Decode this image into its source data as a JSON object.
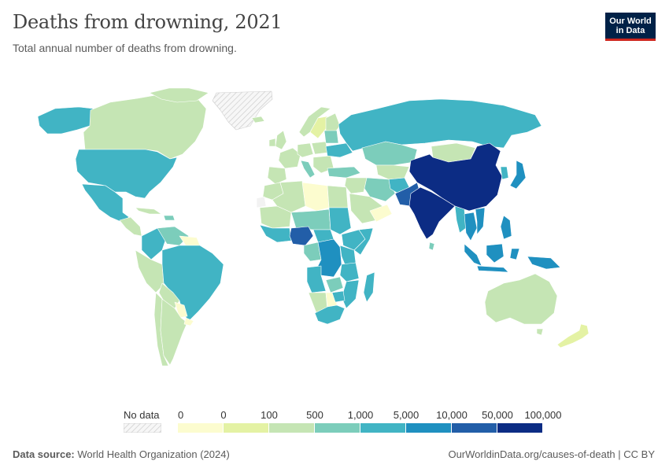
{
  "header": {
    "title": "Deaths from drowning, 2021",
    "subtitle": "Total annual number of deaths from drowning."
  },
  "logo": {
    "line1": "Our World",
    "line2": "in Data"
  },
  "legend": {
    "no_data_label": "No data",
    "bins": [
      {
        "label": "0",
        "color": "#fcfccf"
      },
      {
        "label": "0",
        "color": "#e4f2a4"
      },
      {
        "label": "100",
        "color": "#c5e5b4"
      },
      {
        "label": "500",
        "color": "#7ccdbb"
      },
      {
        "label": "1,000",
        "color": "#41b4c4"
      },
      {
        "label": "5,000",
        "color": "#1f90c0"
      },
      {
        "label": "10,000",
        "color": "#225ea8"
      },
      {
        "label": "50,000",
        "color": "#0c2c84"
      }
    ],
    "max_label": "100,000",
    "no_data_color": "#f2f2f2"
  },
  "map_regions": [
    {
      "name": "Canada",
      "color": "#c5e5b4"
    },
    {
      "name": "United States",
      "color": "#41b4c4"
    },
    {
      "name": "Mexico",
      "color": "#41b4c4"
    },
    {
      "name": "Greenland",
      "color": "#f2f2f2"
    },
    {
      "name": "Brazil",
      "color": "#41b4c4"
    },
    {
      "name": "Argentina",
      "color": "#c5e5b4"
    },
    {
      "name": "Russia",
      "color": "#41b4c4"
    },
    {
      "name": "China",
      "color": "#0c2c84"
    },
    {
      "name": "India",
      "color": "#0c2c84"
    },
    {
      "name": "Nigeria",
      "color": "#225ea8"
    },
    {
      "name": "DR Congo",
      "color": "#1f90c0"
    },
    {
      "name": "Australia",
      "color": "#c5e5b4"
    }
  ],
  "footer": {
    "source_label": "Data source:",
    "source_text": "World Health Organization (2024)",
    "url_text": "OurWorldinData.org/causes-of-death | CC BY"
  }
}
